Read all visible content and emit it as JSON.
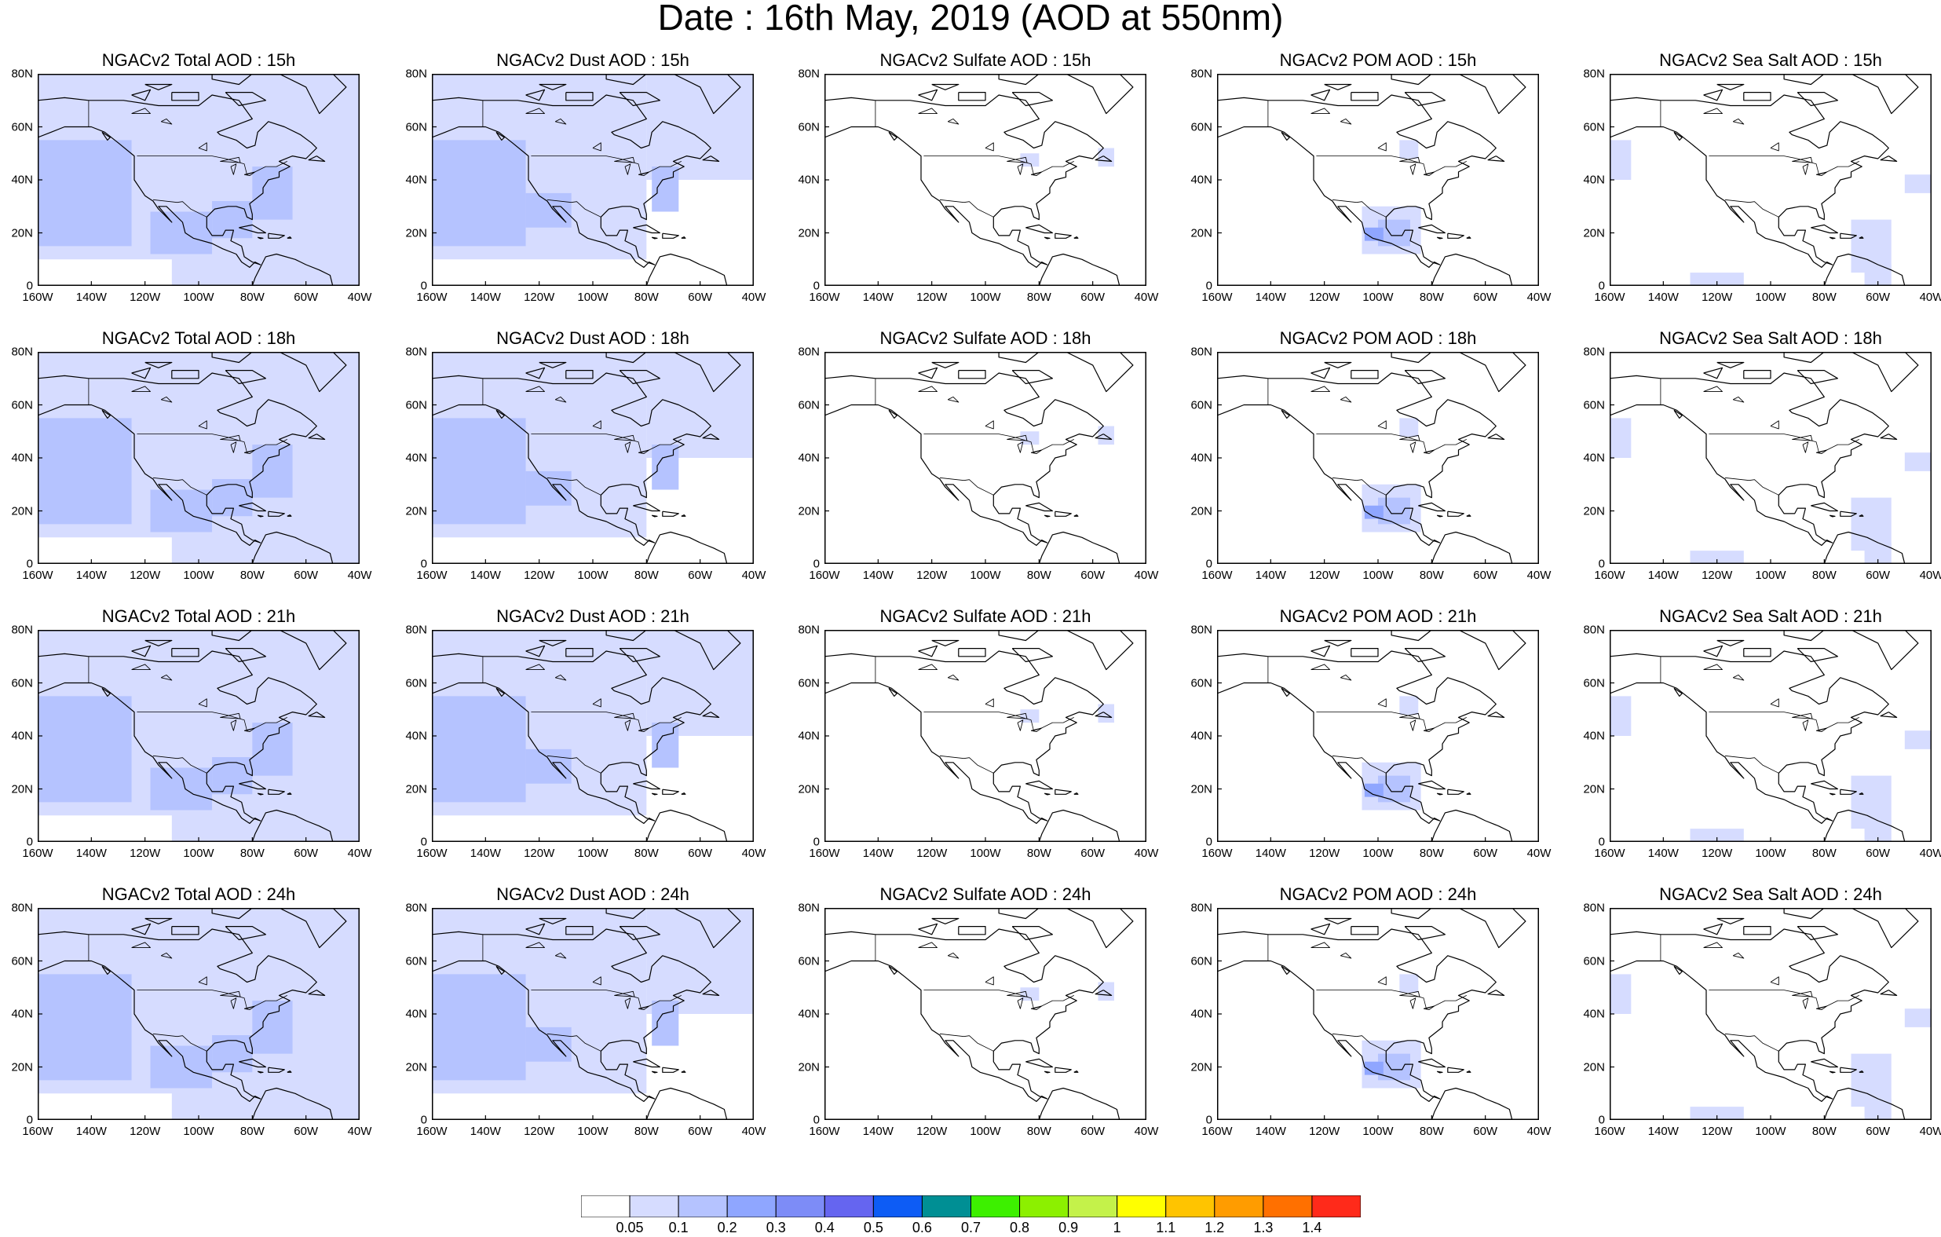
{
  "title": "Date : 16th May, 2019 (AOD at 550nm)",
  "chart_data": {
    "type": "heatmap",
    "title": "Date : 16th May, 2019 (AOD at 550nm)",
    "layout": "4 rows x 5 columns of maps",
    "variables": [
      "NGACv2 Total AOD",
      "NGACv2 Dust AOD",
      "NGACv2 Sulfate AOD",
      "NGACv2 POM AOD",
      "NGACv2 Sea Salt AOD"
    ],
    "panels": [
      [
        "NGACv2 Total AOD : 15h",
        "NGACv2 Dust AOD : 15h",
        "NGACv2 Sulfate AOD : 15h",
        "NGACv2 POM AOD : 15h",
        "NGACv2 Sea Salt AOD : 15h"
      ],
      [
        "NGACv2 Total AOD : 18h",
        "NGACv2 Dust AOD : 18h",
        "NGACv2 Sulfate AOD : 18h",
        "NGACv2 POM AOD : 18h",
        "NGACv2 Sea Salt AOD : 18h"
      ],
      [
        "NGACv2 Total AOD : 21h",
        "NGACv2 Dust AOD : 21h",
        "NGACv2 Sulfate AOD : 21h",
        "NGACv2 POM AOD : 21h",
        "NGACv2 Sea Salt AOD : 21h"
      ],
      [
        "NGACv2 Total AOD : 24h",
        "NGACv2 Dust AOD : 24h",
        "NGACv2 Sulfate AOD : 24h",
        "NGACv2 POM AOD : 24h",
        "NGACv2 Sea Salt  AOD : 24h"
      ]
    ],
    "x_ticks": [
      "160W",
      "140W",
      "120W",
      "100W",
      "80W",
      "60W",
      "40W"
    ],
    "x_values": [
      -160,
      -140,
      -120,
      -100,
      -80,
      -60,
      -40
    ],
    "y_ticks": [
      "0",
      "20N",
      "40N",
      "60N",
      "80N"
    ],
    "y_values": [
      0,
      20,
      40,
      60,
      80
    ],
    "xlim": [
      -160,
      -40
    ],
    "ylim": [
      0,
      80
    ],
    "colorbar": {
      "labels": [
        "0.05",
        "0.1",
        "0.2",
        "0.3",
        "0.4",
        "0.5",
        "0.6",
        "0.7",
        "0.8",
        "0.9",
        "1",
        "1.1",
        "1.2",
        "1.3",
        "1.4"
      ],
      "colors": [
        "#ffffff",
        "#d6dcff",
        "#b5c3ff",
        "#8fa6ff",
        "#7d8cf7",
        "#6565f0",
        "#0d5cf5",
        "#008f94",
        "#3df000",
        "#8cf000",
        "#c4f24a",
        "#ffff00",
        "#ffc400",
        "#ff9c00",
        "#ff7000",
        "#ff2a1a"
      ]
    },
    "regions": {
      "total": [
        {
          "lon": [
            -160,
            -40
          ],
          "lat": [
            0,
            80
          ],
          "level": 1
        },
        {
          "lon": [
            -160,
            -125
          ],
          "lat": [
            15,
            55
          ],
          "level": 2
        },
        {
          "lon": [
            -118,
            -95
          ],
          "lat": [
            12,
            28
          ],
          "level": 2
        },
        {
          "lon": [
            -95,
            -80
          ],
          "lat": [
            18,
            32
          ],
          "level": 2
        },
        {
          "lon": [
            -80,
            -65
          ],
          "lat": [
            25,
            45
          ],
          "level": 2
        },
        {
          "lon": [
            -160,
            -110
          ],
          "lat": [
            0,
            10
          ],
          "level": 0
        }
      ],
      "dust": [
        {
          "lon": [
            -160,
            -80
          ],
          "lat": [
            10,
            80
          ],
          "level": 1
        },
        {
          "lon": [
            -80,
            -40
          ],
          "lat": [
            40,
            80
          ],
          "level": 1
        },
        {
          "lon": [
            -160,
            -125
          ],
          "lat": [
            15,
            55
          ],
          "level": 2
        },
        {
          "lon": [
            -125,
            -108
          ],
          "lat": [
            22,
            35
          ],
          "level": 2
        },
        {
          "lon": [
            -78,
            -68
          ],
          "lat": [
            28,
            45
          ],
          "level": 2
        }
      ],
      "sulfate": [
        {
          "lon": [
            -58,
            -52
          ],
          "lat": [
            45,
            52
          ],
          "level": 1
        },
        {
          "lon": [
            -87,
            -80
          ],
          "lat": [
            45,
            50
          ],
          "level": 1
        }
      ],
      "pom": [
        {
          "lon": [
            -106,
            -84
          ],
          "lat": [
            12,
            30
          ],
          "level": 1
        },
        {
          "lon": [
            -100,
            -88
          ],
          "lat": [
            15,
            25
          ],
          "level": 2
        },
        {
          "lon": [
            -105,
            -98
          ],
          "lat": [
            17,
            22
          ],
          "level": 3
        },
        {
          "lon": [
            -92,
            -85
          ],
          "lat": [
            48,
            55
          ],
          "level": 1
        }
      ],
      "seasalt": [
        {
          "lon": [
            -160,
            -152
          ],
          "lat": [
            40,
            55
          ],
          "level": 1
        },
        {
          "lon": [
            -70,
            -55
          ],
          "lat": [
            5,
            25
          ],
          "level": 1
        },
        {
          "lon": [
            -65,
            -55
          ],
          "lat": [
            0,
            8
          ],
          "level": 1
        },
        {
          "lon": [
            -130,
            -110
          ],
          "lat": [
            0,
            5
          ],
          "level": 1
        },
        {
          "lon": [
            -50,
            -40
          ],
          "lat": [
            35,
            42
          ],
          "level": 1
        }
      ]
    }
  }
}
